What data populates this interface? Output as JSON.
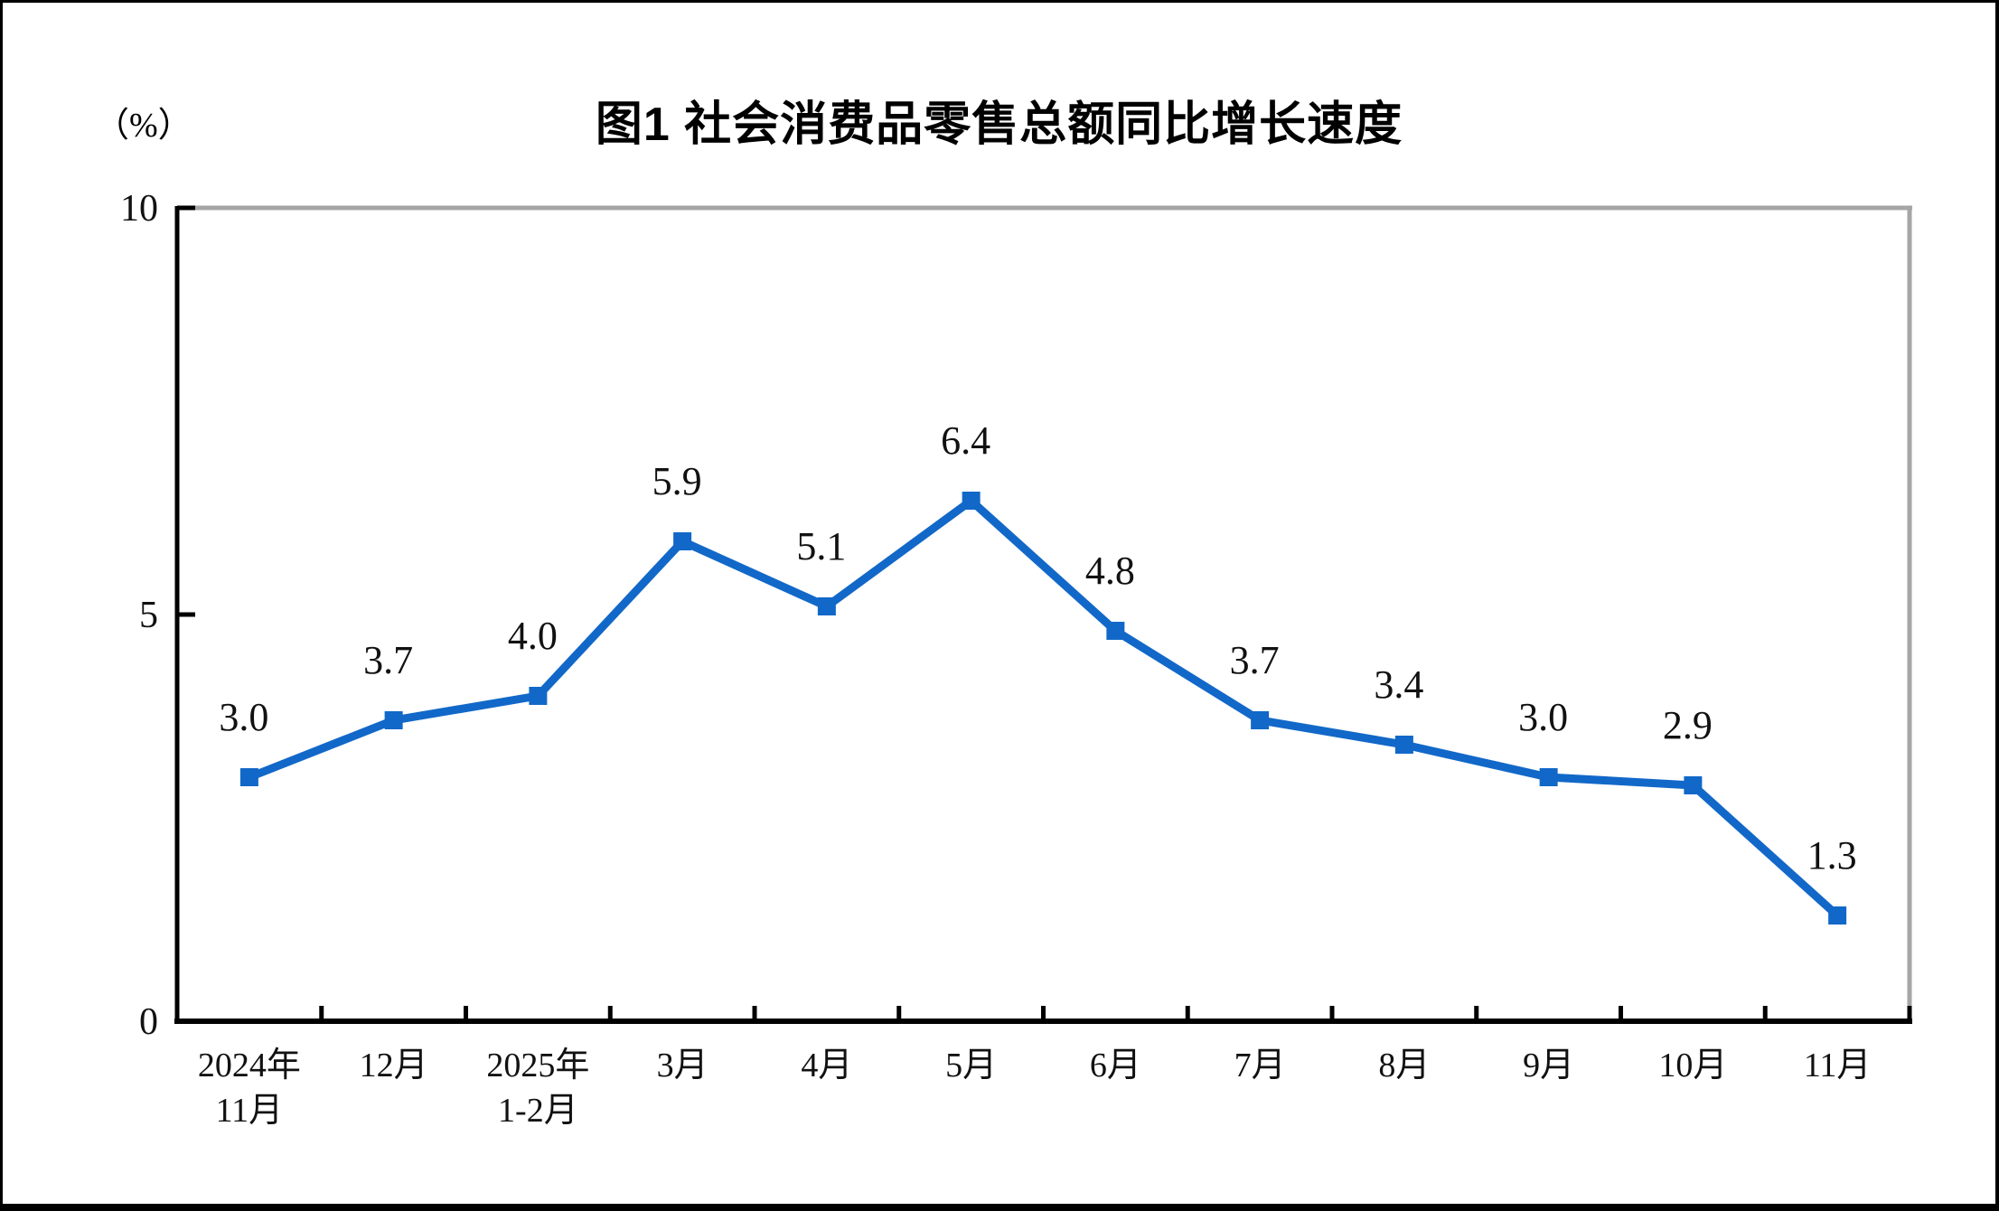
{
  "page": {
    "background": "#ffffff",
    "frame_color": "#000000"
  },
  "chart_data": {
    "type": "line",
    "title": "图1  社会消费品零售总额同比增长速度",
    "unit": "（%）",
    "categories": [
      "2024年\n11月",
      "12月",
      "2025年\n1-2月",
      "3月",
      "4月",
      "5月",
      "6月",
      "7月",
      "8月",
      "9月",
      "10月",
      "11月"
    ],
    "values": [
      3.0,
      3.7,
      4.0,
      5.9,
      5.1,
      6.4,
      4.8,
      3.7,
      3.4,
      3.0,
      2.9,
      1.3
    ],
    "point_labels": [
      "3.0",
      "3.7",
      "4.0",
      "5.9",
      "5.1",
      "6.4",
      "4.8",
      "3.7",
      "3.4",
      "3.0",
      "2.9",
      "1.3"
    ],
    "ylim": [
      0,
      10
    ],
    "yticks": [
      0,
      5,
      10
    ],
    "xlabel": "",
    "ylabel": "（%）",
    "grid": false,
    "legend": null,
    "line_color": "#1268C8",
    "marker": "square",
    "marker_color": "#1268C8",
    "axis_color": "#000000",
    "plot_border_color": "#A6A6A6",
    "label_color": "#111111"
  }
}
